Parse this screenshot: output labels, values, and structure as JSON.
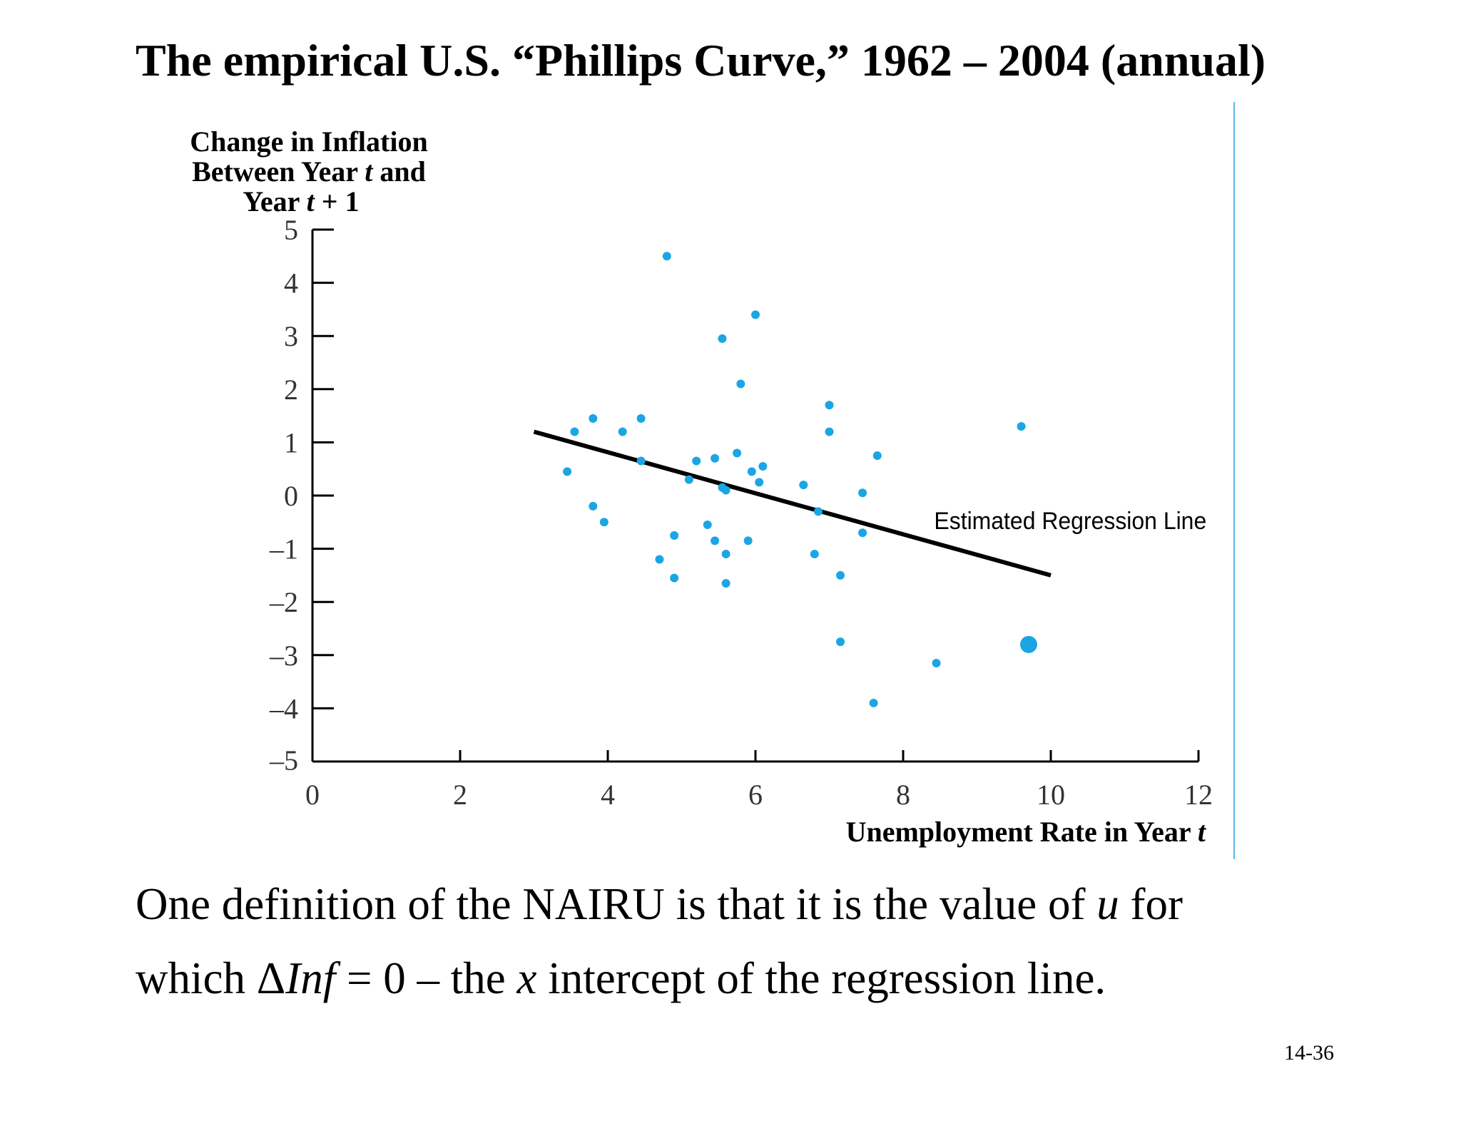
{
  "slide": {
    "title": "The empirical U.S. “Phillips Curve,” 1962 – 2004 (annual)",
    "body_line1": {
      "a": "One definition of the NAIRU is that it is the value of ",
      "u": "u",
      "b": " for"
    },
    "body_line2": {
      "a": "which Δ",
      "inf": "Inf",
      "b": " = 0 – the ",
      "x": "x",
      "c": " intercept of the regression line."
    },
    "slide_number": "14-36"
  },
  "colors": {
    "points": "#1ba6e3",
    "line": "#000000",
    "axis": "#000000",
    "divider": "#5bb8e8"
  },
  "chart_data": {
    "type": "scatter",
    "ylabel": {
      "line1": "Change in Inflation",
      "line2a": "Between Year ",
      "line2t": "t",
      "line2b": " and",
      "line3a": "Year ",
      "line3t": "t",
      "line3b": " + 1"
    },
    "xlabel": {
      "a": "Unemployment Rate in Year ",
      "t": "t"
    },
    "xlim": [
      0,
      12
    ],
    "ylim": [
      -5,
      5
    ],
    "x_ticks": [
      "0",
      "2",
      "4",
      "6",
      "8",
      "10",
      "12"
    ],
    "y_ticks": [
      "5",
      "4",
      "3",
      "2",
      "1",
      "0",
      "–1",
      "–2",
      "–3",
      "–4",
      "–5"
    ],
    "points": [
      {
        "x": 4.8,
        "y": 4.5
      },
      {
        "x": 6.0,
        "y": 3.4
      },
      {
        "x": 5.55,
        "y": 2.95
      },
      {
        "x": 5.8,
        "y": 2.1
      },
      {
        "x": 7.0,
        "y": 1.7
      },
      {
        "x": 7.0,
        "y": 1.2
      },
      {
        "x": 9.6,
        "y": 1.3
      },
      {
        "x": 3.8,
        "y": 1.45
      },
      {
        "x": 4.45,
        "y": 1.45
      },
      {
        "x": 3.55,
        "y": 1.2
      },
      {
        "x": 4.2,
        "y": 1.2
      },
      {
        "x": 4.45,
        "y": 0.65
      },
      {
        "x": 3.45,
        "y": 0.45
      },
      {
        "x": 5.2,
        "y": 0.65
      },
      {
        "x": 5.45,
        "y": 0.7
      },
      {
        "x": 5.75,
        "y": 0.8
      },
      {
        "x": 6.1,
        "y": 0.55
      },
      {
        "x": 5.95,
        "y": 0.45
      },
      {
        "x": 6.05,
        "y": 0.25
      },
      {
        "x": 5.1,
        "y": 0.3
      },
      {
        "x": 5.55,
        "y": 0.15
      },
      {
        "x": 5.6,
        "y": 0.1
      },
      {
        "x": 6.65,
        "y": 0.2
      },
      {
        "x": 7.45,
        "y": 0.05
      },
      {
        "x": 7.65,
        "y": 0.75
      },
      {
        "x": 3.8,
        "y": -0.2
      },
      {
        "x": 3.95,
        "y": -0.5
      },
      {
        "x": 6.85,
        "y": -0.3
      },
      {
        "x": 5.35,
        "y": -0.55
      },
      {
        "x": 4.9,
        "y": -0.75
      },
      {
        "x": 5.45,
        "y": -0.85
      },
      {
        "x": 5.9,
        "y": -0.85
      },
      {
        "x": 7.45,
        "y": -0.7
      },
      {
        "x": 5.6,
        "y": -1.1
      },
      {
        "x": 6.8,
        "y": -1.1
      },
      {
        "x": 4.7,
        "y": -1.2
      },
      {
        "x": 4.9,
        "y": -1.55
      },
      {
        "x": 5.6,
        "y": -1.65
      },
      {
        "x": 7.15,
        "y": -1.5
      },
      {
        "x": 7.15,
        "y": -2.75
      },
      {
        "x": 9.7,
        "y": -2.8,
        "large": true
      },
      {
        "x": 8.45,
        "y": -3.15
      },
      {
        "x": 7.6,
        "y": -3.9
      }
    ],
    "regression_line": {
      "x": [
        3.0,
        10.0
      ],
      "y": [
        1.2,
        -1.5
      ]
    },
    "annotation": "Estimated Regression Line"
  }
}
